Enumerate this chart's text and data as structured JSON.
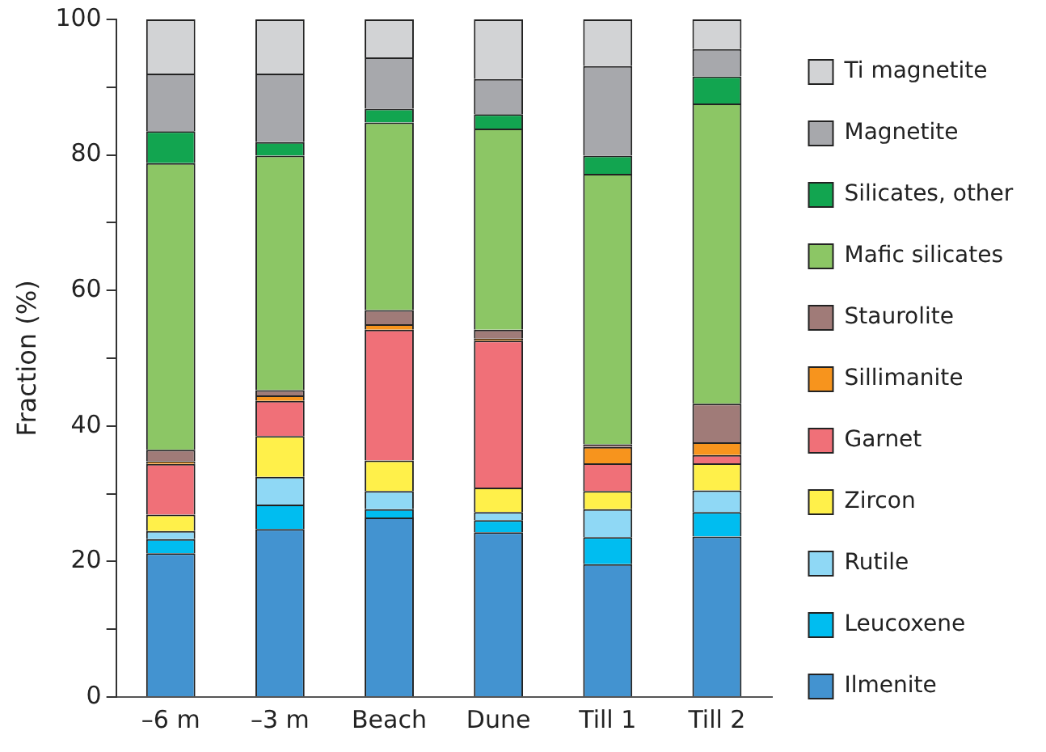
{
  "chart_data": {
    "type": "bar",
    "stacked": true,
    "ylabel": "Fraction (%)",
    "categories": [
      "–6 m",
      "–3 m",
      "Beach",
      "Dune",
      "Till 1",
      "Till 2"
    ],
    "ylim": [
      0,
      100
    ],
    "yticks": [
      0,
      {
        "value": 10,
        "label": null
      },
      20,
      {
        "value": 30,
        "label": null
      },
      40,
      {
        "value": 50,
        "label": null
      },
      60,
      {
        "value": 70,
        "label": null
      },
      80,
      {
        "value": 90,
        "label": null
      },
      100
    ],
    "grid": false,
    "legend": "right",
    "series": [
      {
        "name": "Ilmenite",
        "color": "#4393d0",
        "values": [
          21.2,
          24.8,
          26.5,
          24.3,
          19.6,
          23.7
        ]
      },
      {
        "name": "Leucoxene",
        "color": "#00bdf0",
        "values": [
          2.1,
          3.6,
          1.2,
          1.8,
          4.0,
          3.6
        ]
      },
      {
        "name": "Rutile",
        "color": "#8fd8f5",
        "values": [
          1.2,
          4.1,
          2.7,
          1.2,
          4.1,
          3.2
        ]
      },
      {
        "name": "Zircon",
        "color": "#fff04a",
        "values": [
          2.4,
          6.0,
          4.5,
          3.6,
          2.7,
          4.0
        ]
      },
      {
        "name": "Garnet",
        "color": "#f07078",
        "values": [
          7.5,
          5.2,
          19.3,
          21.7,
          4.1,
          1.2
        ]
      },
      {
        "name": "Sillimanite",
        "color": "#f7941d",
        "values": [
          0.4,
          0.8,
          0.8,
          0.3,
          2.4,
          1.9
        ]
      },
      {
        "name": "Staurolite",
        "color": "#a07b78",
        "values": [
          1.7,
          0.8,
          2.1,
          1.3,
          0.4,
          5.7
        ]
      },
      {
        "name": "Mafic silicates",
        "color": "#8cc665",
        "values": [
          42.3,
          34.6,
          27.7,
          29.7,
          39.9,
          44.3
        ]
      },
      {
        "name": "Silicates, other",
        "color": "#12a550",
        "values": [
          4.7,
          2.0,
          2.0,
          2.1,
          2.7,
          4.0
        ]
      },
      {
        "name": "Magnetite",
        "color": "#a7a8ac",
        "values": [
          8.5,
          10.1,
          7.6,
          5.2,
          13.2,
          4.0
        ]
      },
      {
        "name": "Ti magnetite",
        "color": "#d2d3d5",
        "values": [
          8.0,
          8.0,
          5.6,
          8.8,
          6.9,
          4.4
        ]
      }
    ]
  }
}
